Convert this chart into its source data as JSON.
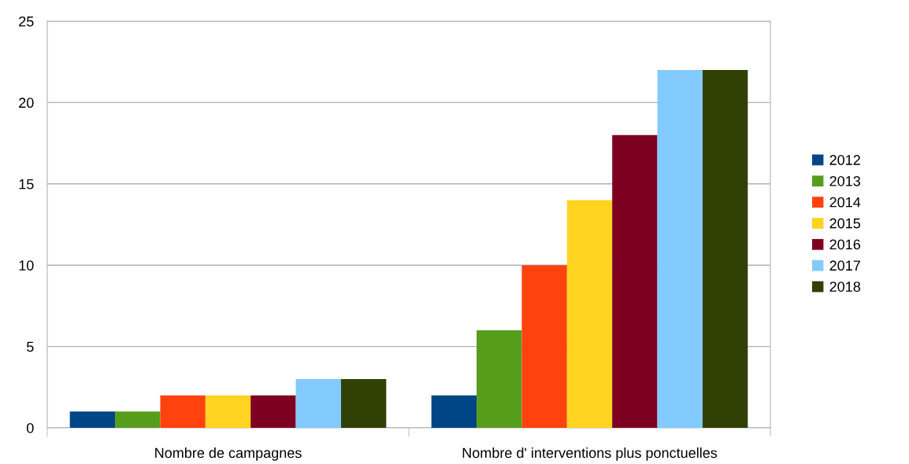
{
  "chart_data": {
    "type": "bar",
    "categories": [
      "Nombre de campagnes",
      "Nombre d' interventions plus ponctuelles"
    ],
    "series": [
      {
        "name": "2012",
        "color": "#004586",
        "values": [
          1,
          2
        ]
      },
      {
        "name": "2013",
        "color": "#579d1c",
        "values": [
          1,
          6
        ]
      },
      {
        "name": "2014",
        "color": "#ff420e",
        "values": [
          2,
          10
        ]
      },
      {
        "name": "2015",
        "color": "#ffd320",
        "values": [
          2,
          14
        ]
      },
      {
        "name": "2016",
        "color": "#7e0021",
        "values": [
          2,
          18
        ]
      },
      {
        "name": "2017",
        "color": "#83caff",
        "values": [
          3,
          22
        ]
      },
      {
        "name": "2018",
        "color": "#314004",
        "values": [
          3,
          22
        ]
      }
    ],
    "ylim": [
      0,
      25
    ],
    "yticks": [
      0,
      5,
      10,
      15,
      20,
      25
    ],
    "grid": "y",
    "legend": "right"
  }
}
